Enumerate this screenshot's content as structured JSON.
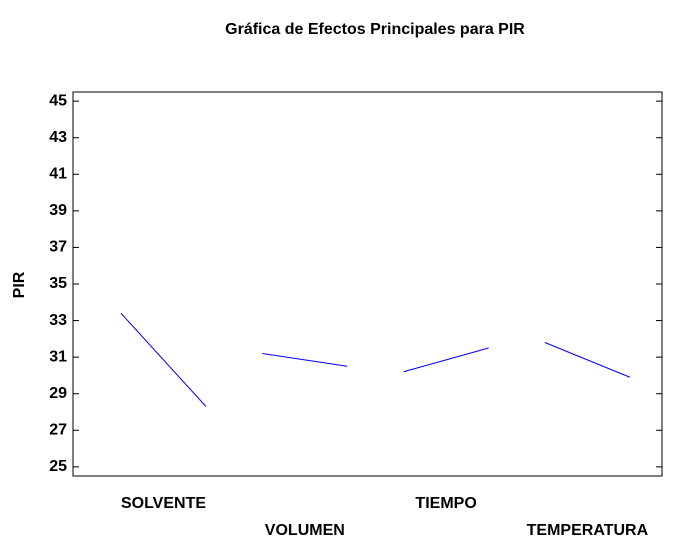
{
  "chart_data": {
    "type": "main-effects",
    "title": "Gráfica de Efectos Principales para PIR",
    "ylabel": "PIR",
    "factors": [
      {
        "name": "SOLVENTE",
        "values": [
          33.4,
          28.3
        ]
      },
      {
        "name": "VOLUMEN",
        "values": [
          31.2,
          30.5
        ]
      },
      {
        "name": "TIEMPO",
        "values": [
          30.2,
          31.5
        ]
      },
      {
        "name": "TEMPERATURA",
        "values": [
          31.8,
          29.9
        ]
      }
    ],
    "color": "#0000ff",
    "ylim": [
      24.5,
      45.5
    ],
    "yticks": [
      25,
      27,
      29,
      31,
      33,
      35,
      37,
      39,
      41,
      43,
      45
    ]
  }
}
